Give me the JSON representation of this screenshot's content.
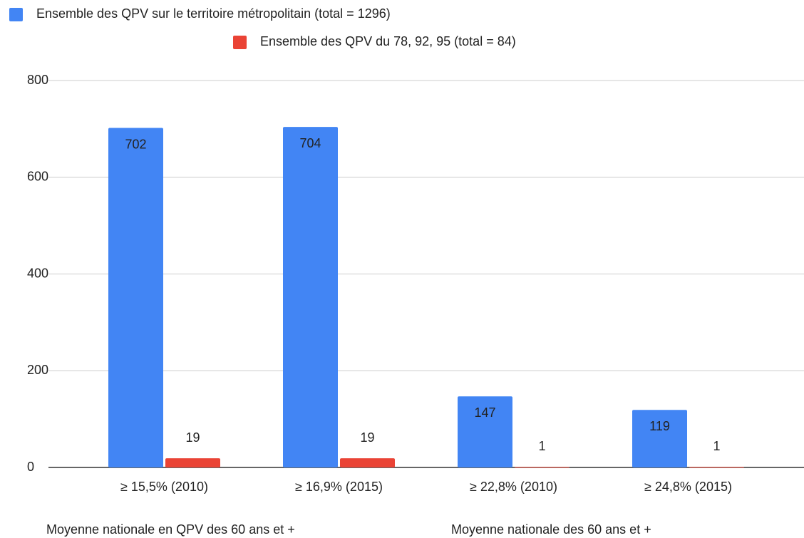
{
  "chart_data": {
    "type": "bar",
    "categories": [
      "≥ 15,5% (2010)",
      "≥ 16,9% (2015)",
      "≥ 22,8% (2010)",
      "≥ 24,8% (2015)"
    ],
    "series": [
      {
        "name": "Ensemble des QPV sur le territoire métropolitain (total = 1296)",
        "color": "#4285f4",
        "values": [
          702,
          704,
          147,
          119
        ]
      },
      {
        "name": "Ensemble des QPV du 78, 92, 95 (total = 84)",
        "color": "#ea4335",
        "values": [
          19,
          19,
          1,
          1
        ]
      }
    ],
    "annotations": [
      "Moyenne nationale en QPV des 60 ans et +",
      "Moyenne nationale des 60 ans et +"
    ],
    "ylim": [
      0,
      800
    ],
    "yticks": [
      0,
      200,
      400,
      600,
      800
    ],
    "grid": true
  }
}
